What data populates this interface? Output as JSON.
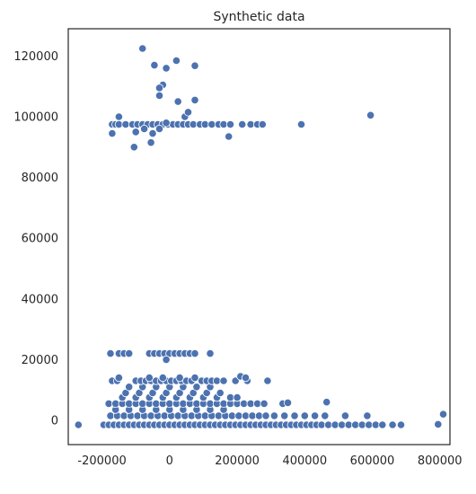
{
  "chart_data": {
    "type": "scatter",
    "title": "Synthetic data",
    "xlabel": "",
    "ylabel": "",
    "xlim": [
      -300000,
      830000
    ],
    "ylim": [
      -8000,
      129000
    ],
    "x_ticks": [
      -200000,
      0,
      200000,
      400000,
      600000,
      800000
    ],
    "x_tick_labels": [
      "-200000",
      "0",
      "200000",
      "400000",
      "600000",
      "800000"
    ],
    "y_ticks": [
      0,
      20000,
      40000,
      60000,
      80000,
      100000,
      120000
    ],
    "y_tick_labels": [
      "0",
      "20000",
      "40000",
      "60000",
      "80000",
      "100000",
      "120000"
    ],
    "grid": false,
    "legend": "none",
    "marker_color": "#4c72b0",
    "marker_edge_color": "#ffffff",
    "series": [
      {
        "points": [
          [
            -270000,
            -1500
          ],
          [
            795000,
            -1300
          ],
          [
            810000,
            2000
          ],
          [
            -195000,
            -1500
          ],
          [
            -180000,
            -1500
          ],
          [
            -165000,
            -1500
          ],
          [
            -150000,
            -1500
          ],
          [
            -135000,
            -1500
          ],
          [
            -120000,
            -1500
          ],
          [
            -105000,
            -1500
          ],
          [
            -90000,
            -1500
          ],
          [
            -75000,
            -1500
          ],
          [
            -60000,
            -1500
          ],
          [
            -45000,
            -1500
          ],
          [
            -30000,
            -1500
          ],
          [
            -15000,
            -1500
          ],
          [
            0,
            -1500
          ],
          [
            15000,
            -1500
          ],
          [
            30000,
            -1500
          ],
          [
            45000,
            -1500
          ],
          [
            60000,
            -1500
          ],
          [
            75000,
            -1500
          ],
          [
            90000,
            -1500
          ],
          [
            105000,
            -1500
          ],
          [
            120000,
            -1500
          ],
          [
            135000,
            -1500
          ],
          [
            150000,
            -1500
          ],
          [
            165000,
            -1500
          ],
          [
            180000,
            -1500
          ],
          [
            195000,
            -1500
          ],
          [
            210000,
            -1500
          ],
          [
            225000,
            -1500
          ],
          [
            240000,
            -1500
          ],
          [
            255000,
            -1500
          ],
          [
            270000,
            -1500
          ],
          [
            285000,
            -1500
          ],
          [
            300000,
            -1500
          ],
          [
            315000,
            -1500
          ],
          [
            330000,
            -1500
          ],
          [
            345000,
            -1500
          ],
          [
            360000,
            -1500
          ],
          [
            375000,
            -1500
          ],
          [
            390000,
            -1500
          ],
          [
            405000,
            -1500
          ],
          [
            420000,
            -1500
          ],
          [
            435000,
            -1500
          ],
          [
            450000,
            -1500
          ],
          [
            470000,
            -1500
          ],
          [
            490000,
            -1500
          ],
          [
            510000,
            -1500
          ],
          [
            530000,
            -1500
          ],
          [
            550000,
            -1500
          ],
          [
            570000,
            -1500
          ],
          [
            590000,
            -1500
          ],
          [
            610000,
            -1500
          ],
          [
            630000,
            -1500
          ],
          [
            660000,
            -1500
          ],
          [
            685000,
            -1500
          ],
          [
            -175000,
            1500
          ],
          [
            -155000,
            1500
          ],
          [
            -135000,
            1500
          ],
          [
            -115000,
            1500
          ],
          [
            -95000,
            1500
          ],
          [
            -75000,
            1500
          ],
          [
            -55000,
            1500
          ],
          [
            -35000,
            1500
          ],
          [
            -15000,
            1500
          ],
          [
            5000,
            1500
          ],
          [
            25000,
            1500
          ],
          [
            45000,
            1500
          ],
          [
            65000,
            1500
          ],
          [
            85000,
            1500
          ],
          [
            105000,
            1500
          ],
          [
            125000,
            1500
          ],
          [
            145000,
            1500
          ],
          [
            165000,
            1500
          ],
          [
            185000,
            1500
          ],
          [
            205000,
            1500
          ],
          [
            225000,
            1500
          ],
          [
            245000,
            1500
          ],
          [
            265000,
            1500
          ],
          [
            285000,
            1500
          ],
          [
            310000,
            1500
          ],
          [
            340000,
            1500
          ],
          [
            370000,
            1500
          ],
          [
            400000,
            1500
          ],
          [
            430000,
            1500
          ],
          [
            460000,
            1500
          ],
          [
            520000,
            1500
          ],
          [
            585000,
            1500
          ],
          [
            -160000,
            3500
          ],
          [
            -120000,
            3500
          ],
          [
            -80000,
            3500
          ],
          [
            -40000,
            3500
          ],
          [
            0,
            3500
          ],
          [
            40000,
            3500
          ],
          [
            80000,
            3500
          ],
          [
            120000,
            3500
          ],
          [
            160000,
            3500
          ],
          [
            -180000,
            5500
          ],
          [
            -160000,
            5500
          ],
          [
            -140000,
            5500
          ],
          [
            -120000,
            5500
          ],
          [
            -100000,
            5500
          ],
          [
            -80000,
            5500
          ],
          [
            -60000,
            5500
          ],
          [
            -40000,
            5500
          ],
          [
            -20000,
            5500
          ],
          [
            0,
            5500
          ],
          [
            20000,
            5500
          ],
          [
            40000,
            5500
          ],
          [
            60000,
            5500
          ],
          [
            80000,
            5500
          ],
          [
            100000,
            5500
          ],
          [
            120000,
            5500
          ],
          [
            140000,
            5500
          ],
          [
            160000,
            5500
          ],
          [
            180000,
            5500
          ],
          [
            200000,
            5500
          ],
          [
            220000,
            5500
          ],
          [
            240000,
            5500
          ],
          [
            260000,
            5500
          ],
          [
            280000,
            5500
          ],
          [
            335000,
            5500
          ],
          [
            350000,
            5800
          ],
          [
            465000,
            6000
          ],
          [
            -140000,
            7500
          ],
          [
            -100000,
            7500
          ],
          [
            -60000,
            7500
          ],
          [
            -20000,
            7500
          ],
          [
            20000,
            7500
          ],
          [
            60000,
            7500
          ],
          [
            100000,
            7500
          ],
          [
            140000,
            7500
          ],
          [
            180000,
            7500
          ],
          [
            200000,
            7500
          ],
          [
            -130000,
            9000
          ],
          [
            -90000,
            9000
          ],
          [
            -50000,
            9000
          ],
          [
            -10000,
            9000
          ],
          [
            30000,
            9000
          ],
          [
            70000,
            9000
          ],
          [
            110000,
            9000
          ],
          [
            150000,
            9000
          ],
          [
            -120000,
            11000
          ],
          [
            -80000,
            11000
          ],
          [
            -40000,
            11000
          ],
          [
            0,
            11000
          ],
          [
            40000,
            11000
          ],
          [
            80000,
            11000
          ],
          [
            120000,
            11000
          ],
          [
            -170000,
            13000
          ],
          [
            -155000,
            13000
          ],
          [
            -100000,
            13000
          ],
          [
            -85000,
            13000
          ],
          [
            -70000,
            13000
          ],
          [
            -55000,
            13000
          ],
          [
            -40000,
            13000
          ],
          [
            -25000,
            13000
          ],
          [
            -10000,
            13000
          ],
          [
            5000,
            13000
          ],
          [
            20000,
            13000
          ],
          [
            35000,
            13000
          ],
          [
            50000,
            13000
          ],
          [
            65000,
            13000
          ],
          [
            95000,
            13000
          ],
          [
            110000,
            13000
          ],
          [
            125000,
            13000
          ],
          [
            140000,
            13000
          ],
          [
            160000,
            13000
          ],
          [
            195000,
            13000
          ],
          [
            230000,
            13000
          ],
          [
            290000,
            13000
          ],
          [
            -150000,
            14000
          ],
          [
            -60000,
            14000
          ],
          [
            -20000,
            14000
          ],
          [
            30000,
            14000
          ],
          [
            75000,
            14000
          ],
          [
            210000,
            14500
          ],
          [
            225000,
            14000
          ],
          [
            -175000,
            22000
          ],
          [
            -150000,
            22000
          ],
          [
            -135000,
            22000
          ],
          [
            -120000,
            22000
          ],
          [
            -60000,
            22000
          ],
          [
            -45000,
            22000
          ],
          [
            -30000,
            22000
          ],
          [
            -15000,
            22000
          ],
          [
            0,
            22000
          ],
          [
            15000,
            22000
          ],
          [
            30000,
            22000
          ],
          [
            45000,
            22000
          ],
          [
            60000,
            22000
          ],
          [
            75000,
            22000
          ],
          [
            120000,
            22000
          ],
          [
            -10000,
            20000
          ],
          [
            -170000,
            97500
          ],
          [
            -160000,
            97500
          ],
          [
            -150000,
            97500
          ],
          [
            -130000,
            97500
          ],
          [
            -110000,
            97500
          ],
          [
            -95000,
            97500
          ],
          [
            -80000,
            97500
          ],
          [
            -65000,
            97500
          ],
          [
            -50000,
            97500
          ],
          [
            -35000,
            97500
          ],
          [
            -20000,
            97500
          ],
          [
            -5000,
            97500
          ],
          [
            10000,
            97500
          ],
          [
            25000,
            97500
          ],
          [
            40000,
            97500
          ],
          [
            55000,
            97500
          ],
          [
            70000,
            97500
          ],
          [
            90000,
            97500
          ],
          [
            105000,
            97500
          ],
          [
            125000,
            97500
          ],
          [
            145000,
            97500
          ],
          [
            160000,
            97500
          ],
          [
            180000,
            97500
          ],
          [
            215000,
            97500
          ],
          [
            240000,
            97500
          ],
          [
            260000,
            97500
          ],
          [
            275000,
            97500
          ],
          [
            390000,
            97500
          ],
          [
            -170000,
            94500
          ],
          [
            -150000,
            100000
          ],
          [
            -105000,
            90000
          ],
          [
            -100000,
            95000
          ],
          [
            -75000,
            96000
          ],
          [
            -55000,
            91500
          ],
          [
            -50000,
            94500
          ],
          [
            -30000,
            96000
          ],
          [
            -10000,
            98000
          ],
          [
            45000,
            100000
          ],
          [
            55000,
            101500
          ],
          [
            175000,
            93500
          ],
          [
            595000,
            100500
          ],
          [
            -80000,
            122500
          ],
          [
            -45000,
            117000
          ],
          [
            -10000,
            116000
          ],
          [
            20000,
            118500
          ],
          [
            75000,
            116800
          ],
          [
            -20000,
            110500
          ],
          [
            -30000,
            109500
          ],
          [
            -30000,
            107000
          ],
          [
            25000,
            105000
          ],
          [
            75000,
            105500
          ]
        ]
      }
    ]
  }
}
